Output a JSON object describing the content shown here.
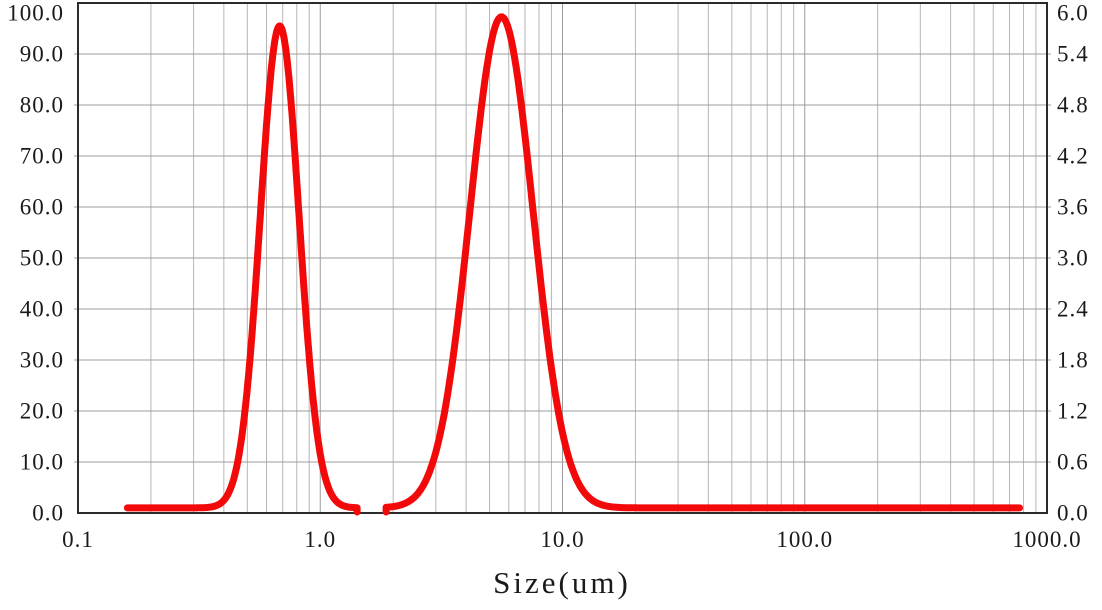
{
  "colors": {
    "background": "#ffffff",
    "text": "#1a1a1a",
    "frame": "#2b2b2b",
    "grid_major": "#9c9c9c",
    "grid_minor": "#b6b6b6",
    "curve": "#f20a0a"
  },
  "chart_data": {
    "type": "line",
    "title": "",
    "xlabel": "Size(um)",
    "x_scale": "log",
    "x_range_um": [
      0.1,
      1000
    ],
    "x_ticks": [
      {
        "value_um": 0.1,
        "label": "0.1"
      },
      {
        "value_um": 1.0,
        "label": "1.0"
      },
      {
        "value_um": 10.0,
        "label": "10.0"
      },
      {
        "value_um": 100.0,
        "label": "100.0"
      },
      {
        "value_um": 1000.0,
        "label": "1000.0"
      }
    ],
    "y_left": {
      "range": [
        0,
        100
      ],
      "tick_step": 10,
      "tick_labels": [
        "100.0",
        "90.0",
        "80.0",
        "70.0",
        "60.0",
        "50.0",
        "40.0",
        "30.0",
        "20.0",
        "10.0",
        "0.0"
      ]
    },
    "y_right": {
      "range": [
        0,
        6.0
      ],
      "tick_step": 0.6,
      "tick_labels": [
        "6.0",
        "5.4",
        "4.8",
        "4.2",
        "3.6",
        "3.0",
        "2.4",
        "1.8",
        "1.2",
        "0.6",
        "0.0"
      ]
    },
    "grid": {
      "horizontal_step": 10,
      "vertical": "log decades with minor lines at 2-9 per decade",
      "shown": true
    },
    "legend": "none",
    "series": [
      {
        "name": "particle-size-distribution-curve",
        "color": "#f20a0a",
        "line_width": 7,
        "baseline_value": 1.0,
        "segments_um": [
          {
            "from_um": 0.16,
            "to_um": 1.42,
            "zero_touch_edge": "end"
          },
          {
            "from_um": 1.87,
            "to_um": 770,
            "zero_touch_edge": "start"
          }
        ],
        "peaks": [
          {
            "center_um": 0.68,
            "height": 94.5,
            "sigma_log10": 0.08
          },
          {
            "center_um": 5.6,
            "height": 96.3,
            "sigma_log10": 0.13
          }
        ]
      }
    ]
  }
}
